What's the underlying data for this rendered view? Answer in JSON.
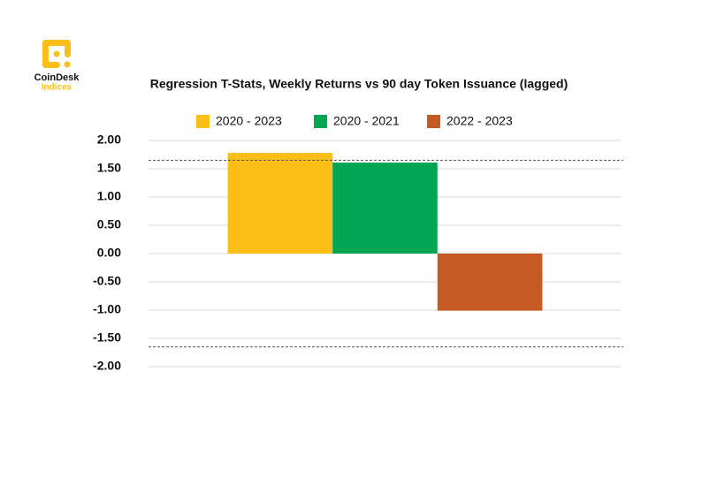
{
  "brand": {
    "name": "CoinDesk",
    "sub": "Indices"
  },
  "chart_data": {
    "type": "bar",
    "title": "Regression T-Stats, Weekly Returns vs 90 day Token Issuance (lagged)",
    "categories": [
      null
    ],
    "series": [
      {
        "name": "2020 - 2023",
        "color": "#fbbf17",
        "values": [
          1.78
        ]
      },
      {
        "name": "2020 - 2021",
        "color": "#00a651",
        "values": [
          1.61
        ]
      },
      {
        "name": "2022 - 2023",
        "color": "#c55a24",
        "values": [
          -1.01
        ]
      }
    ],
    "ylim": [
      -2,
      2
    ],
    "yticks": [
      {
        "value": -2,
        "label": "-2.00"
      },
      {
        "value": -1.5,
        "label": "-1.50"
      },
      {
        "value": -1,
        "label": "-1.00"
      },
      {
        "value": -0.5,
        "label": "-0.50"
      },
      {
        "value": 0,
        "label": "0.00"
      },
      {
        "value": 0.5,
        "label": "0.50"
      },
      {
        "value": 1,
        "label": "1.00"
      },
      {
        "value": 1.5,
        "label": "1.50"
      },
      {
        "value": 2,
        "label": "2.00"
      }
    ],
    "reference_lines": [
      1.65,
      -1.65
    ],
    "grid": true,
    "legend": "top"
  }
}
